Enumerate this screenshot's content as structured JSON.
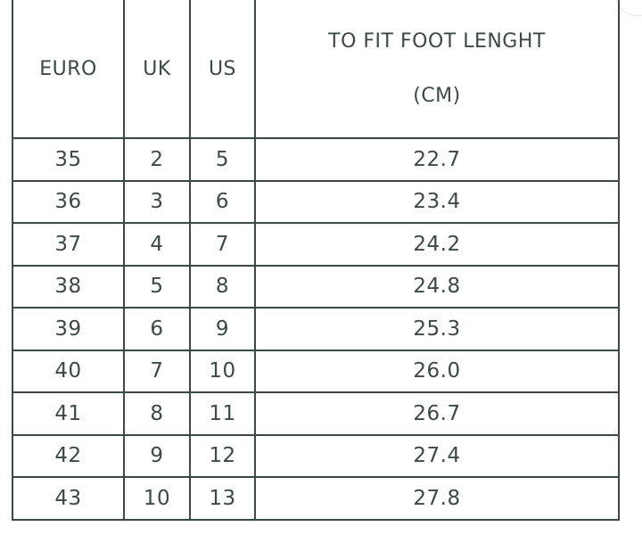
{
  "headers": {
    "euro": "EURO",
    "uk": "UK",
    "us": "US",
    "foot_length": "TO FIT FOOT LENGHT",
    "foot_length_unit": "(CM)"
  },
  "rows": [
    {
      "euro": "35",
      "uk": "2",
      "us": "5",
      "cm": "22.7"
    },
    {
      "euro": "36",
      "uk": "3",
      "us": "6",
      "cm": "23.4"
    },
    {
      "euro": "37",
      "uk": "4",
      "us": "7",
      "cm": "24.2"
    },
    {
      "euro": "38",
      "uk": "5",
      "us": "8",
      "cm": "24.8"
    },
    {
      "euro": "39",
      "uk": "6",
      "us": "9",
      "cm": "25.3"
    },
    {
      "euro": "40",
      "uk": "7",
      "us": "10",
      "cm": "26.0"
    },
    {
      "euro": "41",
      "uk": "8",
      "us": "11",
      "cm": "26.7"
    },
    {
      "euro": "42",
      "uk": "9",
      "us": "12",
      "cm": "27.4"
    },
    {
      "euro": "43",
      "uk": "10",
      "us": "13",
      "cm": "27.8"
    }
  ],
  "colors": {
    "line": "#3b4a47",
    "text": "#3b4a47"
  }
}
